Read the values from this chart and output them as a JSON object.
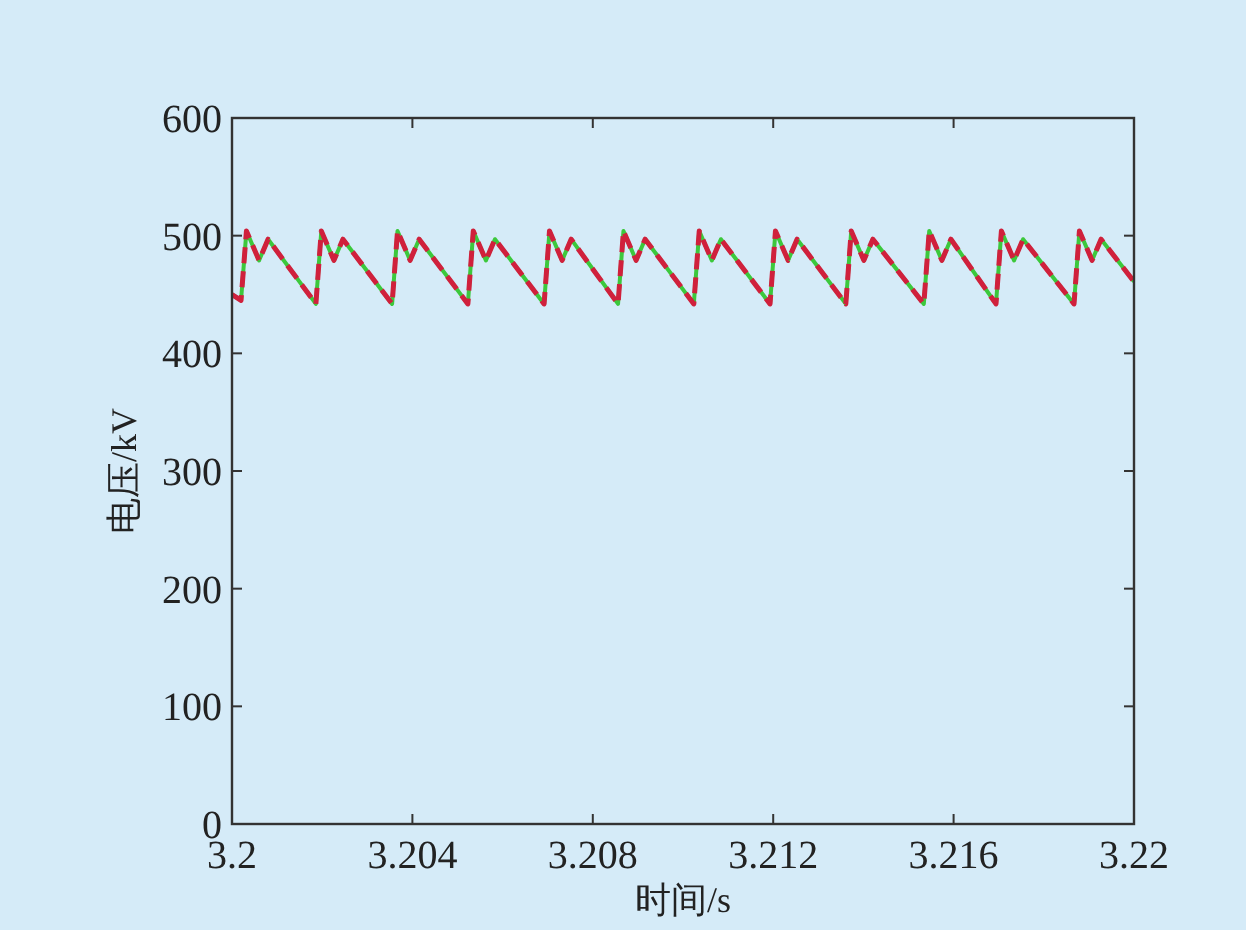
{
  "chart_data": {
    "type": "line",
    "xlabel": "时间/s",
    "ylabel": "电压/kV",
    "x": [
      3.2,
      3.2002,
      3.20032,
      3.2006,
      3.2008,
      3.20186,
      3.20198,
      3.20226,
      3.20246,
      3.20355,
      3.20367,
      3.20395,
      3.20415,
      3.20523,
      3.20535,
      3.20563,
      3.20583,
      3.20692,
      3.20704,
      3.20732,
      3.20752,
      3.20856,
      3.20868,
      3.20896,
      3.20916,
      3.21024,
      3.21036,
      3.21064,
      3.21084,
      3.21193,
      3.21205,
      3.21233,
      3.21253,
      3.21361,
      3.21373,
      3.21401,
      3.21421,
      3.21534,
      3.21546,
      3.21574,
      3.21594,
      3.21694,
      3.21706,
      3.21734,
      3.21754,
      3.21867,
      3.21879,
      3.21907,
      3.21927,
      3.22
    ],
    "series": [
      {
        "color": "#3cc83c",
        "line_style": "solid",
        "values": [
          450,
          445,
          504,
          479,
          497,
          442,
          504,
          479,
          497,
          442,
          504,
          479,
          497,
          442,
          504,
          479,
          497,
          442,
          504,
          479,
          497,
          442,
          504,
          479,
          497,
          442,
          504,
          479,
          497,
          442,
          504,
          479,
          497,
          442,
          504,
          479,
          497,
          442,
          504,
          479,
          497,
          442,
          504,
          479,
          497,
          442,
          504,
          479,
          497,
          461
        ]
      },
      {
        "color": "#d0203c",
        "line_style": "dashed",
        "values": [
          450,
          445,
          504,
          479,
          497,
          442,
          504,
          479,
          497,
          442,
          504,
          479,
          497,
          442,
          504,
          479,
          497,
          442,
          504,
          479,
          497,
          442,
          504,
          479,
          497,
          442,
          504,
          479,
          497,
          442,
          504,
          479,
          497,
          442,
          504,
          479,
          497,
          442,
          504,
          479,
          497,
          442,
          504,
          479,
          497,
          442,
          504,
          479,
          497,
          461
        ]
      }
    ],
    "xlim": [
      3.2,
      3.22
    ],
    "ylim": [
      0,
      600
    ],
    "xticks": [
      3.2,
      3.204,
      3.208,
      3.212,
      3.216,
      3.22
    ],
    "yticks": [
      0,
      100,
      200,
      300,
      400,
      500,
      600
    ]
  }
}
